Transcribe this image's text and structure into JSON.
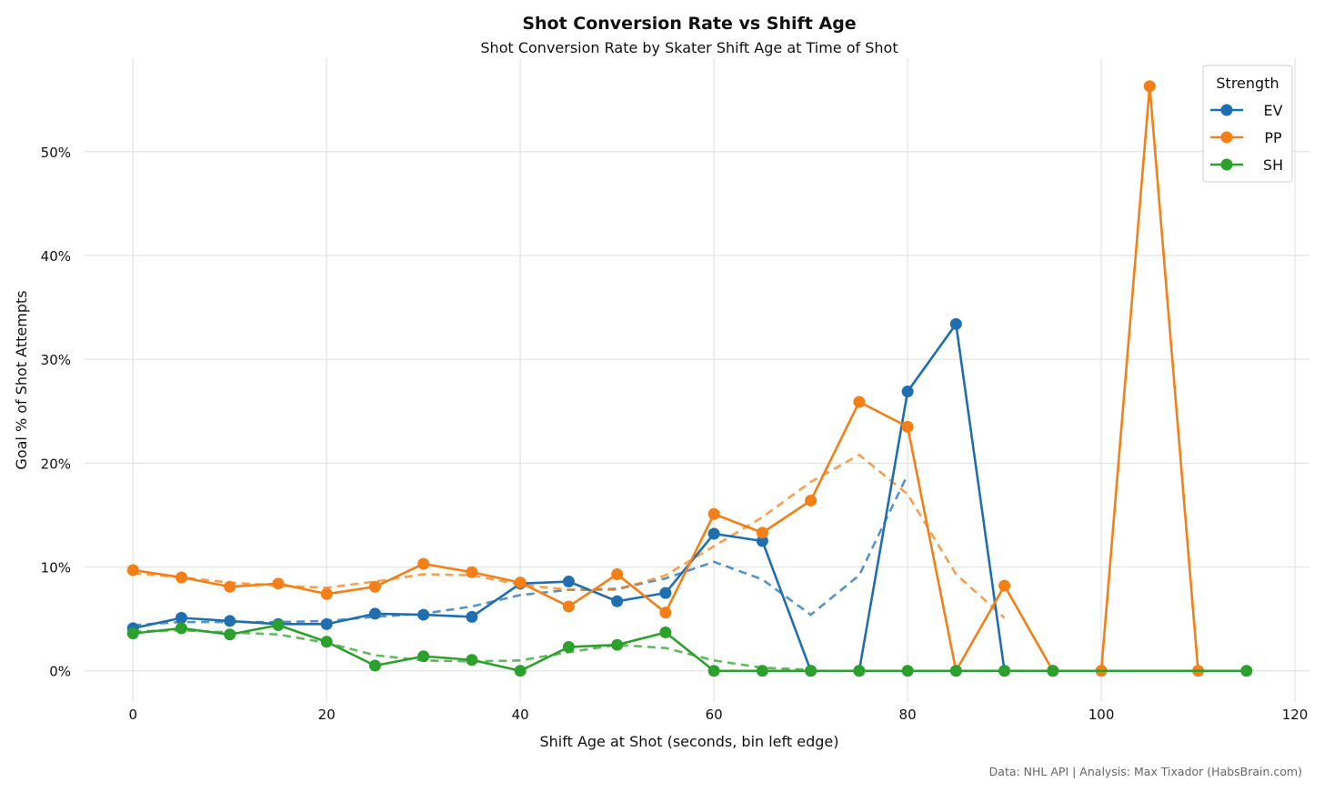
{
  "chart_data": {
    "type": "line",
    "title": "Shot Conversion Rate vs Shift Age",
    "subtitle": "Shot Conversion Rate by Skater Shift Age at Time of Shot",
    "xlabel": "Shift Age at Shot (seconds, bin left edge)",
    "ylabel": "Goal % of Shot Attempts",
    "caption": "Data: NHL API | Analysis: Max Tixador (HabsBrain.com)",
    "xlim": [
      -5,
      121.5
    ],
    "ylim": [
      -3,
      59
    ],
    "xticks": [
      0,
      20,
      40,
      60,
      80,
      100,
      120
    ],
    "yticks": [
      0,
      10,
      20,
      30,
      40,
      50
    ],
    "ytick_labels": [
      "0%",
      "10%",
      "20%",
      "30%",
      "40%",
      "50%"
    ],
    "grid": true,
    "legend": {
      "title": "Strength",
      "placement": "top-right"
    },
    "series": [
      {
        "name": "EV",
        "color": "#1f6fb0",
        "x": [
          0,
          5,
          10,
          15,
          20,
          25,
          30,
          35,
          40,
          45,
          50,
          55,
          60,
          65,
          70,
          75,
          80,
          85,
          90,
          95
        ],
        "values": [
          4.1,
          5.1,
          4.8,
          4.5,
          4.5,
          5.5,
          5.4,
          5.2,
          8.4,
          8.6,
          6.7,
          7.5,
          13.2,
          12.5,
          0,
          0,
          26.9,
          33.4,
          0,
          0
        ],
        "trend_x": [
          0,
          5,
          10,
          15,
          20,
          25,
          30,
          35,
          40,
          45,
          50,
          55,
          60,
          65,
          70,
          75,
          80
        ],
        "trend": [
          4.4,
          4.7,
          4.7,
          4.7,
          4.8,
          5.2,
          5.5,
          6.2,
          7.3,
          7.8,
          7.9,
          8.9,
          10.5,
          8.8,
          5.4,
          9.2,
          18.9
        ]
      },
      {
        "name": "PP",
        "color": "#f57f17",
        "x": [
          0,
          5,
          10,
          15,
          20,
          25,
          30,
          35,
          40,
          45,
          50,
          55,
          60,
          65,
          70,
          75,
          80,
          85,
          90,
          95,
          100,
          105,
          110
        ],
        "values": [
          9.7,
          9.0,
          8.1,
          8.4,
          7.4,
          8.1,
          10.3,
          9.5,
          8.5,
          6.2,
          9.3,
          5.6,
          15.1,
          13.3,
          16.4,
          25.9,
          23.5,
          0,
          8.2,
          0,
          0,
          56.3,
          0
        ],
        "trend_x": [
          0,
          5,
          10,
          15,
          20,
          25,
          30,
          35,
          40,
          45,
          50,
          55,
          60,
          65,
          70,
          75,
          80,
          85,
          90
        ],
        "trend": [
          9.4,
          9.0,
          8.5,
          8.2,
          8.0,
          8.6,
          9.3,
          9.2,
          8.3,
          7.8,
          7.8,
          9.2,
          12.0,
          14.8,
          18.2,
          20.8,
          17.0,
          9.3,
          5.1
        ]
      },
      {
        "name": "SH",
        "color": "#2ca02c",
        "x": [
          0,
          5,
          10,
          15,
          20,
          25,
          30,
          35,
          40,
          45,
          50,
          55,
          60,
          65,
          70,
          75,
          80,
          85,
          90,
          95,
          115
        ],
        "values": [
          3.6,
          4.1,
          3.5,
          4.4,
          2.8,
          0.5,
          1.4,
          1.05,
          0,
          2.3,
          2.5,
          3.7,
          0,
          0,
          0,
          0,
          0,
          0,
          0,
          0,
          0
        ],
        "trend_x": [
          0,
          5,
          10,
          15,
          20,
          25,
          30,
          35,
          40,
          45,
          50,
          55,
          60,
          65,
          70
        ],
        "trend": [
          3.8,
          3.9,
          3.7,
          3.5,
          2.7,
          1.5,
          1.0,
          0.9,
          1.0,
          1.8,
          2.5,
          2.2,
          1.0,
          0.3,
          0.1
        ]
      }
    ]
  }
}
